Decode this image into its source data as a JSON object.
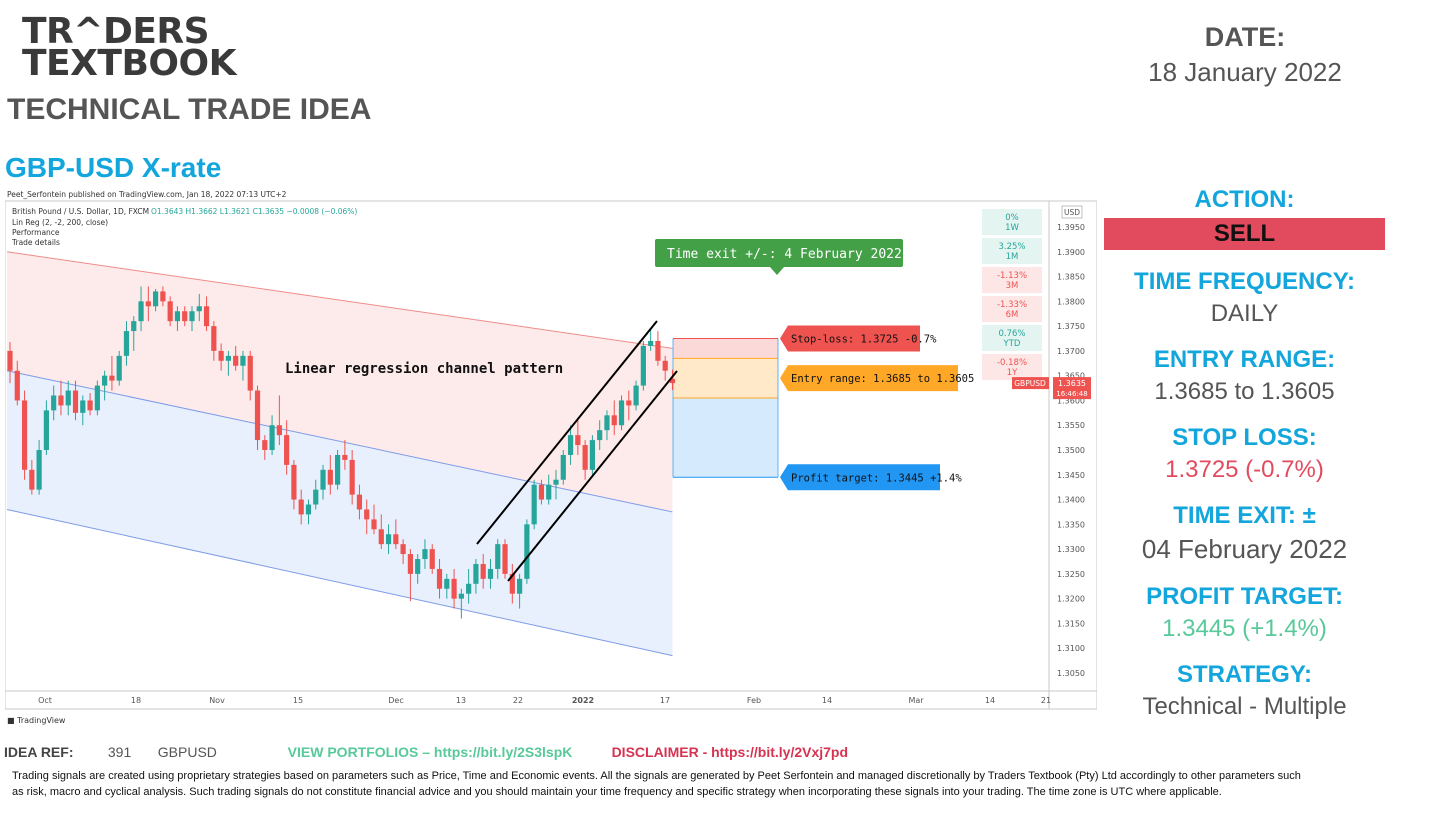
{
  "logo": {
    "line1": "TR^DERS",
    "line2": "TEXTBOOK"
  },
  "heading": "TECHNICAL TRADE IDEA",
  "pair_title": "GBP-USD X-rate",
  "date": {
    "label": "DATE:",
    "value": "18 January 2022"
  },
  "side": {
    "action_label": "ACTION:",
    "action_value": "SELL",
    "frequency_label": "TIME FREQUENCY:",
    "frequency_value": "DAILY",
    "entry_label": "ENTRY RANGE:",
    "entry_value": "1.3685 to 1.3605",
    "stop_label": "STOP LOSS:",
    "stop_value": "1.3725 (-0.7%)",
    "exit_label": "TIME EXIT: ±",
    "exit_value": "04 February 2022",
    "profit_label": "PROFIT TARGET:",
    "profit_value": "1.3445 (+1.4%)",
    "strategy_label": "STRATEGY:",
    "strategy_value": "Technical - Multiple"
  },
  "footer": {
    "ref_label": "IDEA REF:",
    "ref_number": "391",
    "ref_symbol": "GBPUSD",
    "portfolios": "VIEW PORTFOLIOS – https://bit.ly/2S3lspK",
    "disclaimer": "DISCLAIMER -  https://bit.ly/2Vxj7pd",
    "disclaimer_text": "Trading signals are created using proprietary strategies based on parameters such as Price, Time and Economic events. All the signals are generated by Peet Serfontein and managed discretionally by Traders Textbook (Pty) Ltd accordingly to other parameters such as risk, macro and cyclical analysis. Such trading signals do not constitute financial advice and you should maintain your time frequency and specific strategy when incorporating these signals into your trading. The time zone is UTC where applicable."
  },
  "colors": {
    "accent_blue": "#12a6dc",
    "sell_red": "#e24b5d",
    "target_green": "#57c99a",
    "bull_candle": "#26a69a",
    "bear_candle": "#ef5350"
  },
  "chart_data": {
    "type": "candlestick",
    "published": "Peet_Serfontein published on TradingView.com, Jan 18, 2022 07:13 UTC+2",
    "symbol_line": "British Pound / U.S. Dollar, 1D, FXCM",
    "ohlc": "O1.3643  H1.3662  L1.3621  C1.3635  −0.0008 (−0.06%)",
    "indicator": "Lin Reg (2, -2, 200, close)",
    "panel_items": [
      "Performance",
      "Trade details"
    ],
    "currency": "USD",
    "y_ticks": [
      "1.3950",
      "1.3900",
      "1.3850",
      "1.3800",
      "1.3750",
      "1.3700",
      "1.3650",
      "1.3600",
      "1.3550",
      "1.3500",
      "1.3450",
      "1.3400",
      "1.3350",
      "1.3300",
      "1.3250",
      "1.3200",
      "1.3150",
      "1.3100",
      "1.3050"
    ],
    "ylim": [
      1.3,
      1.4
    ],
    "x_ticks": [
      "Oct",
      "18",
      "Nov",
      "15",
      "Dec",
      "13",
      "22",
      "2022",
      "17",
      "Feb",
      "14",
      "Mar",
      "14",
      "21"
    ],
    "price_tag": {
      "symbol": "GBPUSD",
      "price": "1.3635",
      "countdown": "16:46:48"
    },
    "performance": [
      {
        "value": "0%",
        "period": "1W",
        "color": "#26a69a"
      },
      {
        "value": "3.25%",
        "period": "1M",
        "color": "#26a69a"
      },
      {
        "value": "-1.13%",
        "period": "3M",
        "color": "#ef5350"
      },
      {
        "value": "-1.33%",
        "period": "6M",
        "color": "#ef5350"
      },
      {
        "value": "0.76%",
        "period": "YTD",
        "color": "#26a69a"
      },
      {
        "value": "-0.18%",
        "period": "1Y",
        "color": "#ef5350"
      }
    ],
    "annotations": {
      "pattern": "Linear regression channel pattern",
      "time_exit": "Time exit +/-: 4 February 2022",
      "stop_loss": "Stop-loss: 1.3725 -0.7%",
      "entry": "Entry range: 1.3685 to 1.3605",
      "profit": "Profit target: 1.3445 +1.4%"
    },
    "levels": {
      "stop": 1.3725,
      "entry_high": 1.3685,
      "entry_low": 1.3605,
      "target": 1.3445
    },
    "candles": [
      [
        1.37,
        1.3718,
        1.3635,
        1.366
      ],
      [
        1.366,
        1.368,
        1.359,
        1.36
      ],
      [
        1.36,
        1.362,
        1.344,
        1.346
      ],
      [
        1.346,
        1.348,
        1.341,
        1.342
      ],
      [
        1.342,
        1.352,
        1.341,
        1.35
      ],
      [
        1.35,
        1.36,
        1.349,
        1.358
      ],
      [
        1.358,
        1.363,
        1.356,
        1.361
      ],
      [
        1.361,
        1.364,
        1.357,
        1.359
      ],
      [
        1.359,
        1.364,
        1.357,
        1.362
      ],
      [
        1.362,
        1.364,
        1.356,
        1.3575
      ],
      [
        1.3575,
        1.361,
        1.355,
        1.36
      ],
      [
        1.36,
        1.3615,
        1.357,
        1.358
      ],
      [
        1.358,
        1.364,
        1.357,
        1.363
      ],
      [
        1.363,
        1.366,
        1.36,
        1.365
      ],
      [
        1.365,
        1.369,
        1.362,
        1.364
      ],
      [
        1.364,
        1.37,
        1.363,
        1.369
      ],
      [
        1.369,
        1.376,
        1.367,
        1.374
      ],
      [
        1.374,
        1.377,
        1.37,
        1.376
      ],
      [
        1.376,
        1.383,
        1.374,
        1.38
      ],
      [
        1.38,
        1.383,
        1.376,
        1.379
      ],
      [
        1.379,
        1.3825,
        1.378,
        1.382
      ],
      [
        1.382,
        1.383,
        1.379,
        1.38
      ],
      [
        1.38,
        1.381,
        1.375,
        1.376
      ],
      [
        1.376,
        1.379,
        1.374,
        1.378
      ],
      [
        1.378,
        1.379,
        1.375,
        1.376
      ],
      [
        1.376,
        1.379,
        1.374,
        1.378
      ],
      [
        1.378,
        1.3815,
        1.376,
        1.379
      ],
      [
        1.379,
        1.381,
        1.374,
        1.375
      ],
      [
        1.375,
        1.376,
        1.368,
        1.37
      ],
      [
        1.37,
        1.3715,
        1.366,
        1.368
      ],
      [
        1.368,
        1.37,
        1.365,
        1.369
      ],
      [
        1.369,
        1.371,
        1.366,
        1.367
      ],
      [
        1.367,
        1.37,
        1.364,
        1.369
      ],
      [
        1.369,
        1.37,
        1.36,
        1.362
      ],
      [
        1.362,
        1.363,
        1.35,
        1.352
      ],
      [
        1.352,
        1.353,
        1.348,
        1.35
      ],
      [
        1.35,
        1.357,
        1.349,
        1.355
      ],
      [
        1.355,
        1.361,
        1.351,
        1.353
      ],
      [
        1.353,
        1.356,
        1.345,
        1.347
      ],
      [
        1.347,
        1.348,
        1.338,
        1.34
      ],
      [
        1.34,
        1.342,
        1.335,
        1.337
      ],
      [
        1.337,
        1.34,
        1.335,
        1.339
      ],
      [
        1.339,
        1.344,
        1.338,
        1.342
      ],
      [
        1.342,
        1.347,
        1.34,
        1.346
      ],
      [
        1.346,
        1.349,
        1.341,
        1.343
      ],
      [
        1.343,
        1.35,
        1.342,
        1.349
      ],
      [
        1.349,
        1.352,
        1.346,
        1.348
      ],
      [
        1.348,
        1.35,
        1.339,
        1.341
      ],
      [
        1.341,
        1.343,
        1.336,
        1.338
      ],
      [
        1.338,
        1.34,
        1.333,
        1.336
      ],
      [
        1.336,
        1.339,
        1.333,
        1.334
      ],
      [
        1.334,
        1.337,
        1.33,
        1.331
      ],
      [
        1.331,
        1.335,
        1.329,
        1.333
      ],
      [
        1.333,
        1.336,
        1.33,
        1.331
      ],
      [
        1.331,
        1.332,
        1.327,
        1.329
      ],
      [
        1.329,
        1.33,
        1.3195,
        1.325
      ],
      [
        1.325,
        1.329,
        1.323,
        1.328
      ],
      [
        1.328,
        1.332,
        1.326,
        1.33
      ],
      [
        1.33,
        1.331,
        1.325,
        1.326
      ],
      [
        1.326,
        1.328,
        1.32,
        1.322
      ],
      [
        1.322,
        1.325,
        1.32,
        1.324
      ],
      [
        1.324,
        1.326,
        1.318,
        1.32
      ],
      [
        1.32,
        1.322,
        1.316,
        1.321
      ],
      [
        1.321,
        1.326,
        1.319,
        1.323
      ],
      [
        1.323,
        1.328,
        1.321,
        1.327
      ],
      [
        1.327,
        1.329,
        1.322,
        1.324
      ],
      [
        1.324,
        1.328,
        1.322,
        1.326
      ],
      [
        1.326,
        1.332,
        1.324,
        1.331
      ],
      [
        1.331,
        1.332,
        1.324,
        1.325
      ],
      [
        1.325,
        1.327,
        1.319,
        1.321
      ],
      [
        1.321,
        1.325,
        1.318,
        1.324
      ],
      [
        1.324,
        1.336,
        1.323,
        1.335
      ],
      [
        1.335,
        1.344,
        1.334,
        1.343
      ],
      [
        1.343,
        1.344,
        1.339,
        1.34
      ],
      [
        1.34,
        1.345,
        1.339,
        1.343
      ],
      [
        1.343,
        1.346,
        1.34,
        1.344
      ],
      [
        1.344,
        1.35,
        1.343,
        1.349
      ],
      [
        1.349,
        1.355,
        1.347,
        1.353
      ],
      [
        1.353,
        1.356,
        1.349,
        1.351
      ],
      [
        1.351,
        1.352,
        1.344,
        1.346
      ],
      [
        1.346,
        1.353,
        1.345,
        1.352
      ],
      [
        1.352,
        1.356,
        1.35,
        1.354
      ],
      [
        1.354,
        1.358,
        1.352,
        1.357
      ],
      [
        1.357,
        1.36,
        1.353,
        1.355
      ],
      [
        1.355,
        1.361,
        1.354,
        1.36
      ],
      [
        1.36,
        1.362,
        1.356,
        1.359
      ],
      [
        1.359,
        1.364,
        1.358,
        1.363
      ],
      [
        1.363,
        1.372,
        1.362,
        1.371
      ],
      [
        1.371,
        1.3745,
        1.37,
        1.372
      ],
      [
        1.372,
        1.374,
        1.367,
        1.368
      ],
      [
        1.368,
        1.369,
        1.364,
        1.366
      ],
      [
        1.3643,
        1.3662,
        1.3621,
        1.3635
      ]
    ]
  }
}
